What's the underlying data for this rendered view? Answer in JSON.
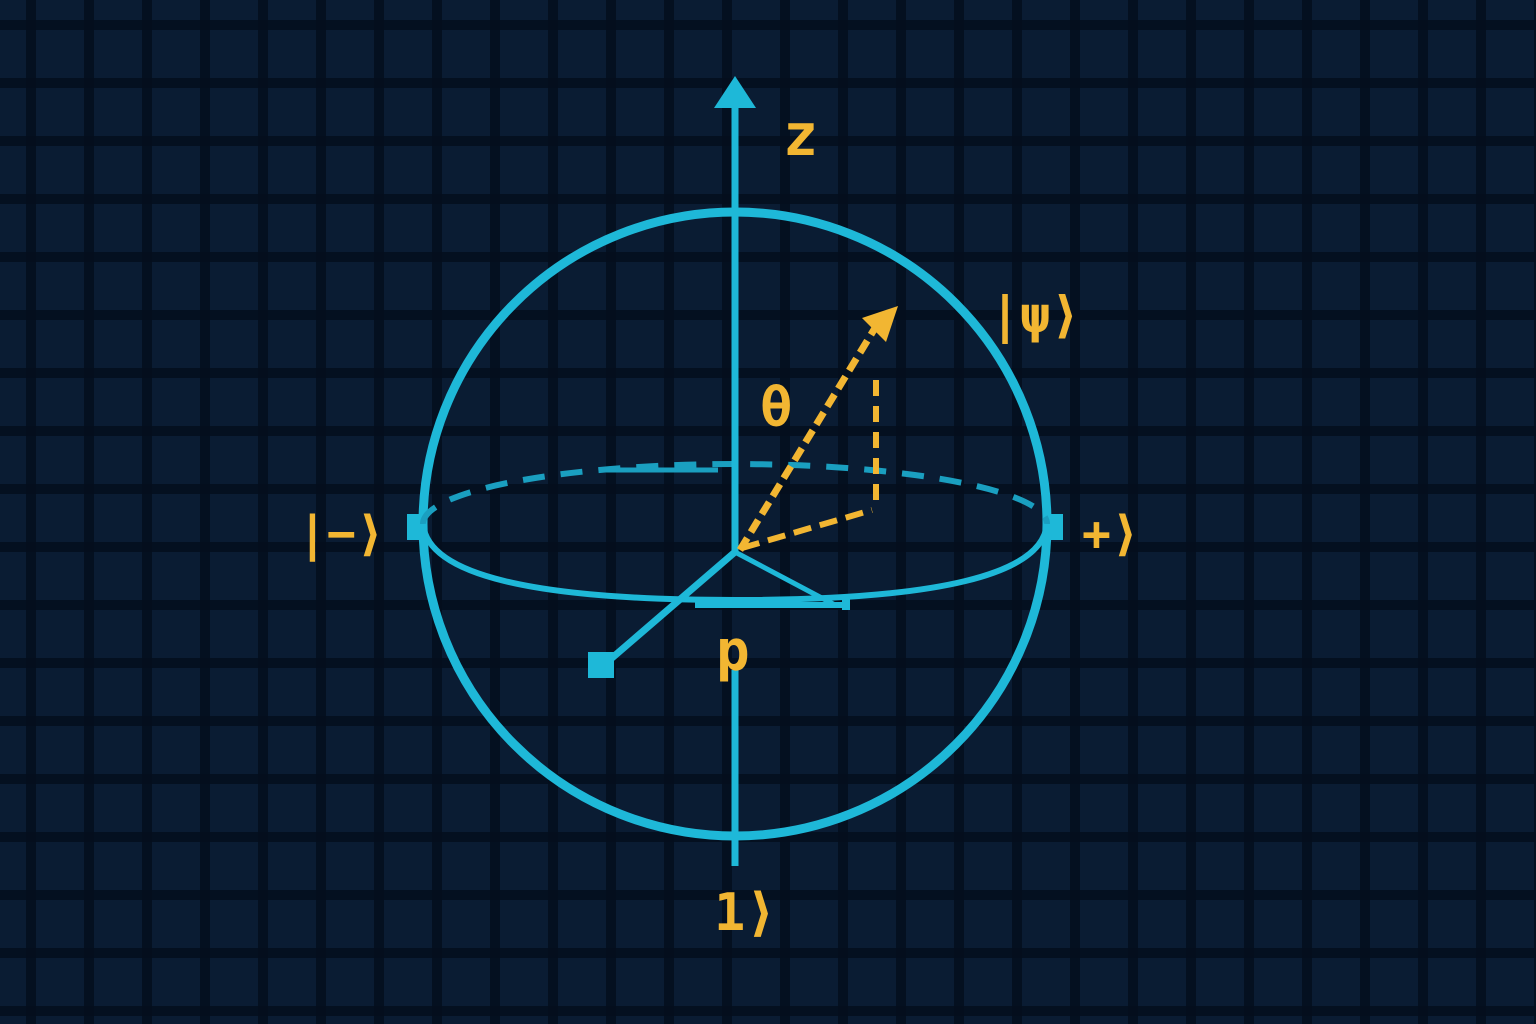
{
  "colors": {
    "background": "#0a1c33",
    "grid_cell": "#102a48",
    "sphere_line": "#1eb8d8",
    "state_vector": "#f2b632",
    "label": "#f2b632"
  },
  "labels": {
    "z_axis": "z",
    "state": "|ψ⟩",
    "theta": "θ",
    "minus_state": "|−⟩",
    "plus_state": "+⟩",
    "phi": "p",
    "one_state": "1⟩"
  }
}
